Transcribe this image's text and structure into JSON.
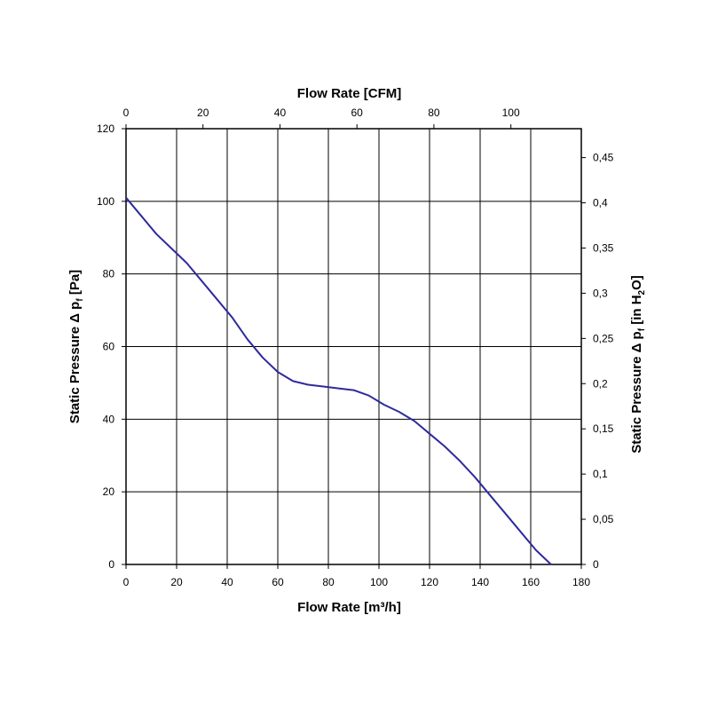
{
  "chart_data": {
    "type": "line",
    "x_axis_bottom": {
      "label": "Flow Rate [m³/h]",
      "range": [
        0,
        180
      ],
      "ticks": [
        "0",
        "20",
        "40",
        "60",
        "80",
        "100",
        "120",
        "140",
        "160",
        "180"
      ]
    },
    "x_axis_top": {
      "label": "Flow Rate [CFM]",
      "range": [
        0,
        118.3
      ],
      "ticks": [
        "0",
        "20",
        "40",
        "60",
        "80",
        "100"
      ]
    },
    "y_axis_left": {
      "label_main": "Static Pressure Δ p",
      "label_sub": "f",
      "label_tail": " [Pa]",
      "range": [
        0,
        120
      ],
      "ticks": [
        "0",
        "20",
        "40",
        "60",
        "80",
        "100",
        "120"
      ]
    },
    "y_axis_right": {
      "label_main": "Static Pressure Δ p",
      "label_sub": "f",
      "label_mid": " [in H",
      "label_sub2": "2",
      "label_tail": "O]",
      "range": [
        0,
        0.482
      ],
      "ticks": [
        "0",
        "0,05",
        "0,1",
        "0,15",
        "0,2",
        "0,25",
        "0,3",
        "0,35",
        "0,4",
        "0,45"
      ]
    },
    "grid": true,
    "line_color": "#2e2b9c",
    "series": [
      {
        "x": [
          0,
          6,
          12,
          18,
          24,
          30,
          36,
          42,
          48,
          54,
          60,
          66,
          72,
          78,
          84,
          90,
          96,
          102,
          108,
          114,
          120,
          126,
          132,
          138,
          144,
          150,
          156,
          162,
          168
        ],
        "y": [
          101,
          96,
          91,
          87,
          83,
          78,
          73,
          68,
          62,
          57,
          53,
          50.5,
          49.5,
          49,
          48.5,
          48,
          46.5,
          44,
          42,
          39.5,
          36,
          32.5,
          28.5,
          24,
          19,
          14,
          9,
          4,
          0
        ]
      }
    ]
  }
}
